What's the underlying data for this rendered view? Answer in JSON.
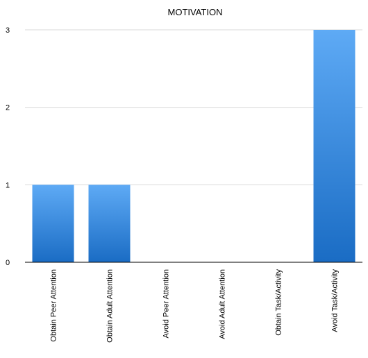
{
  "chart_data": {
    "type": "bar",
    "title": "MOTIVATION",
    "categories": [
      "Obtain Peer Attention",
      "Obtain Adult Attention",
      "Avoid Peer Attention",
      "Avoid Adult Attention",
      "Obtain Task/Activity",
      "Avoid Task/Activity"
    ],
    "values": [
      1,
      1,
      0,
      0,
      0,
      3
    ],
    "ylim": [
      0,
      3
    ],
    "yticks": [
      "0",
      "1",
      "2",
      "3"
    ],
    "grid": true,
    "legend": "none",
    "colors": {
      "bar_top": "#5eaaf5",
      "bar_bottom": "#1a6cc4",
      "grid": "#d9d9d9",
      "axis": "#000000"
    }
  }
}
